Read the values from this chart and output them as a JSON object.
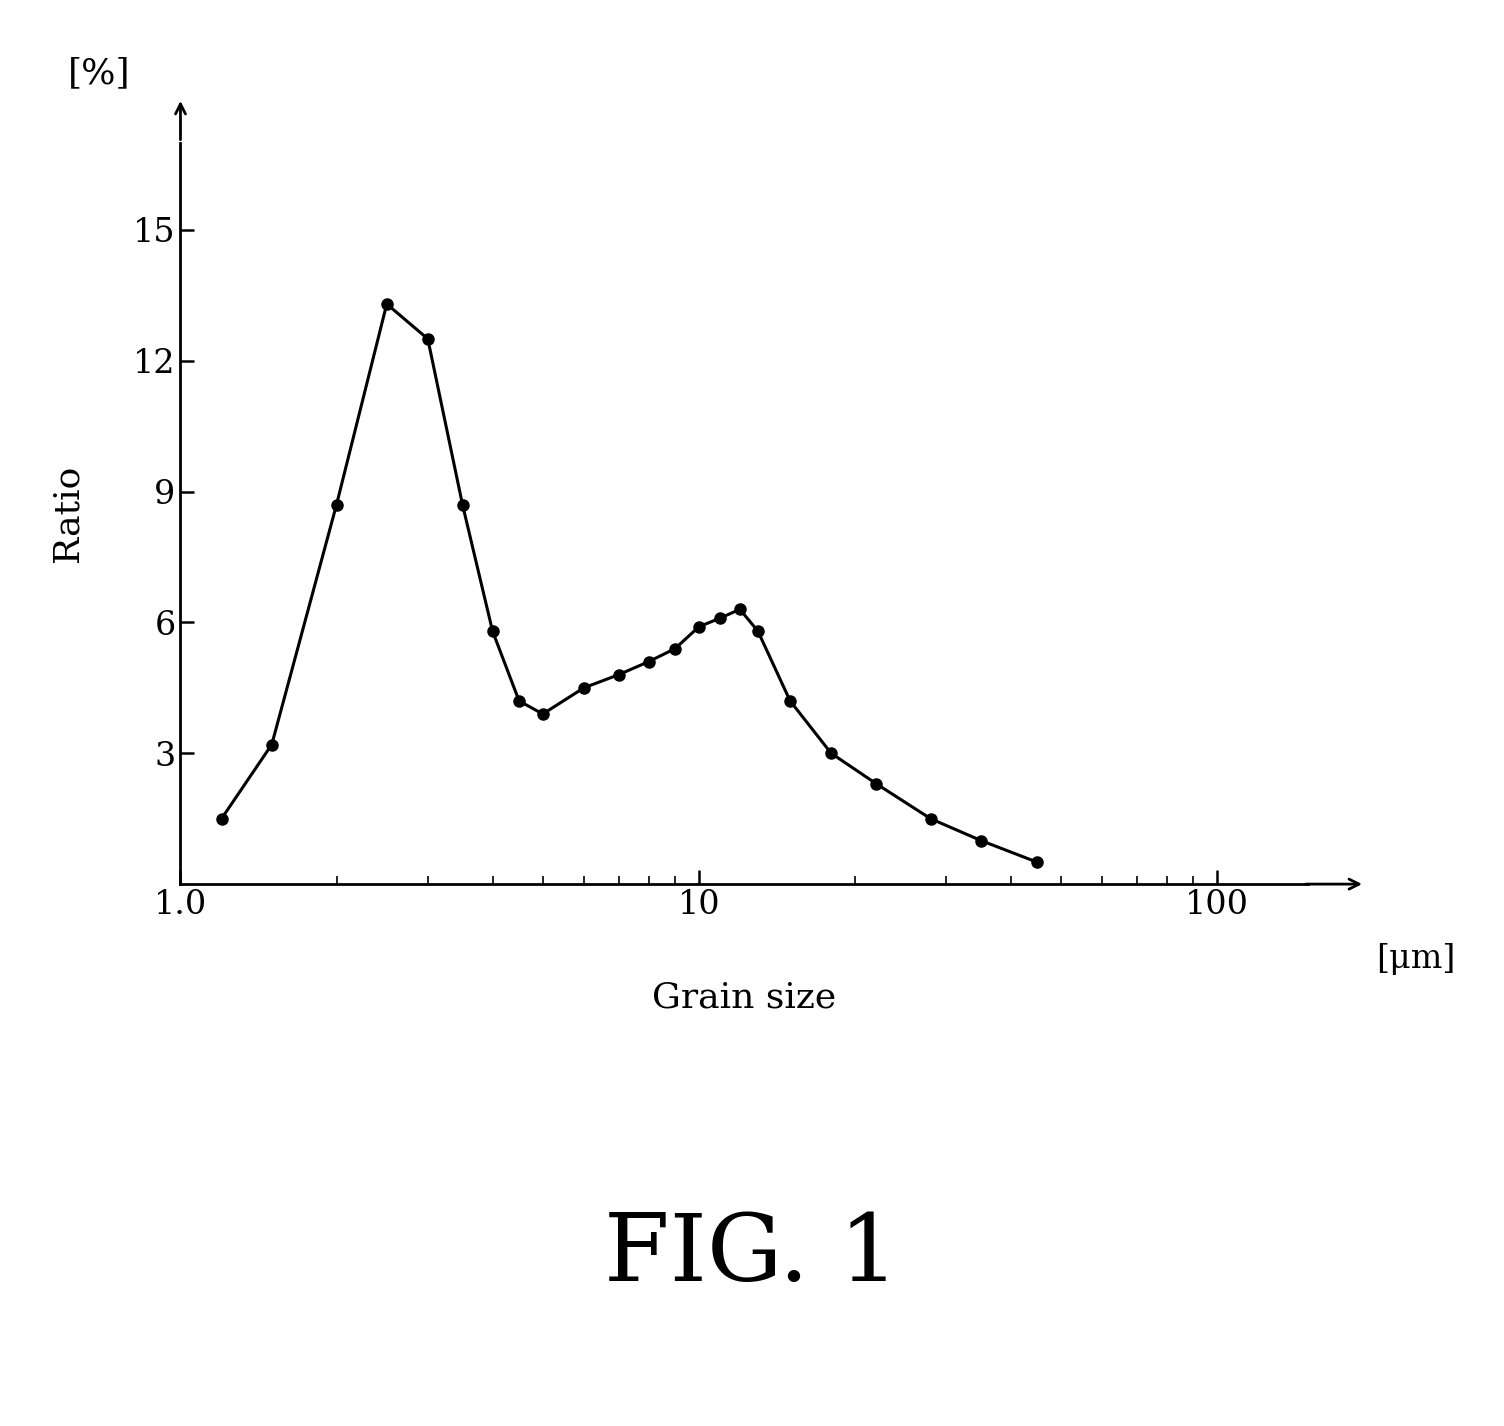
{
  "x": [
    1.2,
    1.5,
    2.0,
    2.5,
    3.0,
    3.5,
    4.0,
    4.5,
    5.0,
    6.0,
    7.0,
    8.0,
    9.0,
    10.0,
    11.0,
    12.0,
    13.0,
    15.0,
    18.0,
    22.0,
    28.0,
    35.0,
    45.0
  ],
  "y": [
    1.5,
    3.2,
    8.7,
    13.3,
    12.5,
    8.7,
    5.8,
    4.2,
    3.9,
    4.5,
    4.8,
    5.1,
    5.4,
    5.9,
    6.1,
    6.3,
    5.8,
    4.2,
    3.0,
    2.3,
    1.5,
    1.0,
    0.5
  ],
  "line_color": "#000000",
  "marker_color": "#000000",
  "marker_size": 8,
  "line_width": 2.2,
  "ylabel": "Ratio",
  "ylabel_unit": "[%]",
  "xlabel": "Grain size",
  "xlabel_unit": "[μm]",
  "figure_label": "FIG. 1",
  "yticks": [
    3,
    6,
    9,
    12,
    15
  ],
  "ylim": [
    0,
    17
  ],
  "xlim": [
    1.0,
    150
  ],
  "background_color": "#ffffff"
}
